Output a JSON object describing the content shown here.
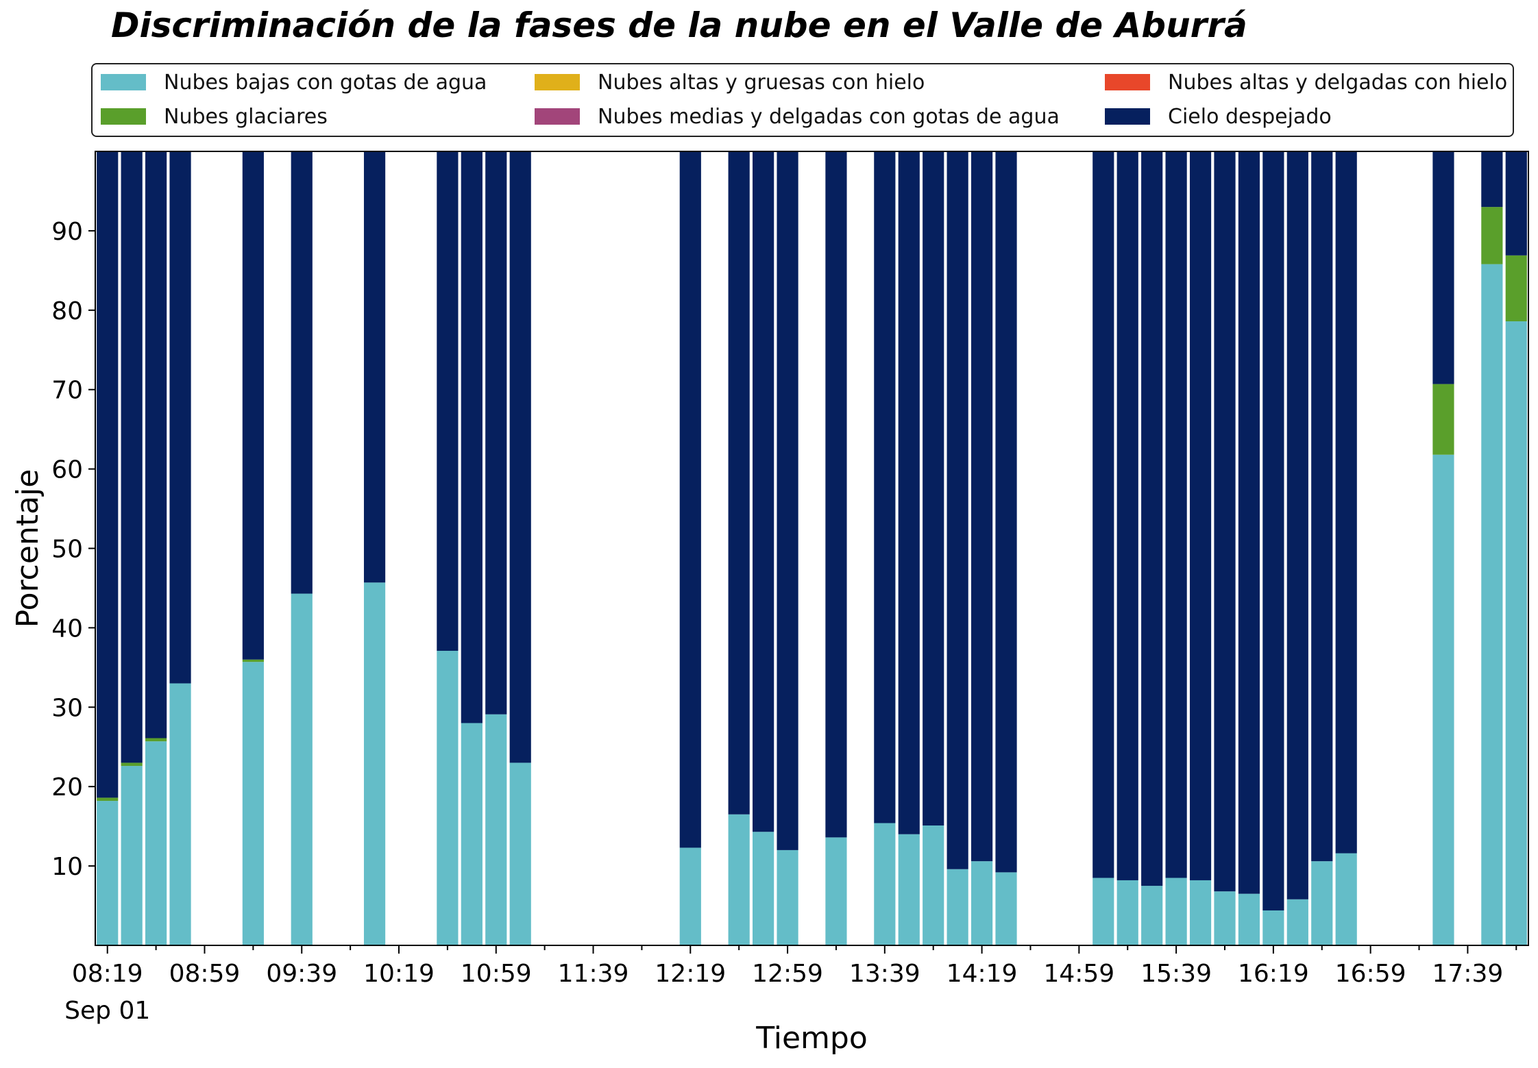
{
  "chart_data": {
    "type": "bar",
    "stacked": true,
    "title": "Discriminación de la fases de la nube en el Valle de Aburrá",
    "xlabel": "Tiempo",
    "ylabel": "Porcentaje",
    "ylim": [
      0,
      100
    ],
    "yticks": [
      10,
      20,
      30,
      40,
      50,
      60,
      70,
      80,
      90
    ],
    "grid": false,
    "legend_position": "top",
    "x_tick_labels": [
      "08:19",
      "08:59",
      "09:39",
      "10:19",
      "10:59",
      "11:39",
      "12:19",
      "12:59",
      "13:39",
      "14:19",
      "14:59",
      "15:39",
      "16:19",
      "16:59",
      "17:39"
    ],
    "x_date_label": "Sep 01",
    "x_major_slot_step": 4,
    "n_slots": 59,
    "slots": [
      0,
      1,
      2,
      3,
      6,
      8,
      11,
      14,
      15,
      16,
      17,
      24,
      26,
      27,
      28,
      30,
      32,
      33,
      34,
      35,
      36,
      37,
      41,
      42,
      43,
      44,
      45,
      46,
      47,
      48,
      49,
      50,
      51,
      55,
      57,
      58
    ],
    "series": [
      {
        "name": "Nubes bajas con gotas de agua",
        "color": "#64BDC8",
        "values": [
          18.2,
          22.6,
          25.7,
          33.0,
          35.7,
          44.3,
          45.7,
          37.1,
          28.0,
          29.1,
          23.0,
          12.3,
          16.5,
          14.3,
          12.0,
          13.6,
          15.4,
          14.0,
          15.1,
          9.6,
          10.6,
          9.2,
          8.5,
          8.2,
          7.5,
          8.5,
          8.2,
          6.8,
          6.5,
          4.4,
          5.8,
          10.6,
          11.6,
          61.8,
          85.8,
          78.6
        ]
      },
      {
        "name": "Nubes glaciares",
        "color": "#5A9F2B",
        "values": [
          0.4,
          0.4,
          0.4,
          0,
          0.3,
          0,
          0,
          0,
          0,
          0,
          0,
          0,
          0,
          0,
          0,
          0,
          0,
          0,
          0,
          0,
          0,
          0,
          0,
          0,
          0,
          0,
          0,
          0,
          0,
          0,
          0,
          0,
          0,
          8.9,
          7.2,
          8.3
        ]
      },
      {
        "name": "Nubes altas y gruesas con hielo",
        "color": "#E0B01A",
        "values": [
          0,
          0,
          0,
          0,
          0,
          0,
          0,
          0,
          0,
          0,
          0,
          0,
          0,
          0,
          0,
          0,
          0,
          0,
          0,
          0,
          0,
          0,
          0,
          0,
          0,
          0,
          0,
          0,
          0,
          0,
          0,
          0,
          0,
          0,
          0,
          0
        ]
      },
      {
        "name": "Nubes medias y delgadas con gotas de agua",
        "color": "#A2457A",
        "values": [
          0,
          0,
          0,
          0,
          0,
          0,
          0,
          0,
          0,
          0,
          0,
          0,
          0,
          0,
          0,
          0,
          0,
          0,
          0,
          0,
          0,
          0,
          0,
          0,
          0,
          0,
          0,
          0,
          0,
          0,
          0,
          0,
          0,
          0,
          0,
          0
        ]
      },
      {
        "name": "Nubes altas y delgadas con hielo",
        "color": "#E8472A",
        "values": [
          0,
          0,
          0,
          0,
          0,
          0,
          0,
          0,
          0,
          0,
          0,
          0,
          0,
          0,
          0,
          0,
          0,
          0,
          0,
          0,
          0,
          0,
          0,
          0,
          0,
          0,
          0,
          0,
          0,
          0,
          0,
          0,
          0,
          0,
          0,
          0
        ]
      },
      {
        "name": "Cielo despejado",
        "color": "#06205E",
        "values": [
          81.4,
          77.0,
          73.9,
          67.0,
          64.0,
          55.7,
          54.3,
          62.9,
          72.0,
          70.9,
          77.0,
          87.7,
          83.5,
          85.7,
          88.0,
          86.4,
          84.6,
          86.0,
          84.9,
          90.4,
          89.4,
          90.8,
          91.5,
          91.8,
          92.5,
          91.5,
          91.8,
          93.2,
          93.5,
          95.6,
          94.2,
          89.4,
          88.4,
          29.3,
          7.0,
          13.1
        ]
      }
    ]
  }
}
